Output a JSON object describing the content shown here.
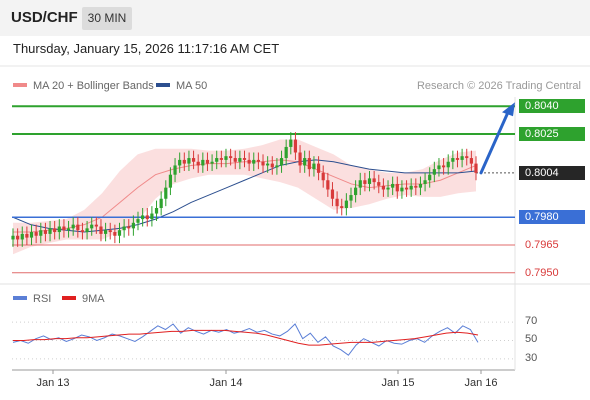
{
  "header": {
    "symbol": "USD/CHF",
    "timeframe": "30 MIN"
  },
  "datetime": "Thursday, January 15, 2026 11:17:16 AM CET",
  "legend": {
    "ma20_label": "MA 20 + Bollinger Bands",
    "ma20_color": "#f08a8a",
    "ma50_label": "MA 50",
    "ma50_color": "#2c4f8f",
    "copyright": "Research © 2026 Trading Central"
  },
  "levels": [
    {
      "value": 0.804,
      "label": "0.8040",
      "kind": "resistance"
    },
    {
      "value": 0.8025,
      "label": "0.8025",
      "kind": "resistance"
    },
    {
      "value": 0.8004,
      "label": "0.8004",
      "kind": "last"
    },
    {
      "value": 0.798,
      "label": "0.7980",
      "kind": "pivot"
    },
    {
      "value": 0.7965,
      "label": "0.7965",
      "kind": "support"
    },
    {
      "value": 0.795,
      "label": "0.7950",
      "kind": "support"
    }
  ],
  "colors": {
    "resistance": "#2ea22e",
    "pivot": "#3a6fd6",
    "support": "#e06b6b",
    "candle_up": "#2ea22e",
    "candle_down": "#d83a3a",
    "bollinger_fill": "#fbdcdc",
    "arrow": "#2a64c8",
    "rsi": "#5b7fd6",
    "rsi_ma": "#e02020"
  },
  "chart_data": {
    "type": "candlestick",
    "ylim": [
      0.7945,
      0.8045
    ],
    "x_ticks": [
      "Jan 13",
      "Jan 14",
      "Jan 15",
      "Jan 16"
    ],
    "closes": [
      0.797,
      0.7968,
      0.7971,
      0.7969,
      0.7972,
      0.797,
      0.7973,
      0.7971,
      0.7974,
      0.7972,
      0.7975,
      0.7973,
      0.7974,
      0.7976,
      0.7973,
      0.7972,
      0.7974,
      0.7976,
      0.7975,
      0.7971,
      0.7973,
      0.7972,
      0.797,
      0.7973,
      0.7975,
      0.7974,
      0.7977,
      0.7979,
      0.7981,
      0.7979,
      0.7982,
      0.7985,
      0.799,
      0.7996,
      0.8003,
      0.8008,
      0.8011,
      0.8009,
      0.8012,
      0.801,
      0.8008,
      0.8011,
      0.8009,
      0.801,
      0.8012,
      0.8011,
      0.8013,
      0.8012,
      0.801,
      0.8012,
      0.8011,
      0.8009,
      0.8011,
      0.801,
      0.8008,
      0.8009,
      0.8007,
      0.8008,
      0.8012,
      0.8018,
      0.8022,
      0.8015,
      0.8008,
      0.8012,
      0.8006,
      0.8009,
      0.8004,
      0.8,
      0.7995,
      0.799,
      0.7986,
      0.7985,
      0.7989,
      0.7992,
      0.7996,
      0.8,
      0.7998,
      0.8001,
      0.7999,
      0.7997,
      0.7995,
      0.7996,
      0.7998,
      0.7994,
      0.7996,
      0.7995,
      0.7997,
      0.7996,
      0.7998,
      0.8,
      0.8003,
      0.8006,
      0.8008,
      0.8007,
      0.801,
      0.8012,
      0.8011,
      0.8013,
      0.8012,
      0.8009,
      0.8004
    ],
    "ma20_band": {
      "mid": [
        0.7972,
        0.7972,
        0.7973,
        0.7974,
        0.7976,
        0.798,
        0.7988,
        0.7996,
        0.8003,
        0.8006,
        0.8008,
        0.8009,
        0.8009,
        0.801,
        0.801,
        0.8011,
        0.801,
        0.8006,
        0.8002,
        0.7998,
        0.7996,
        0.7997,
        0.7998,
        0.7998,
        0.8,
        0.8004,
        0.8008
      ],
      "upper": [
        0.7977,
        0.7977,
        0.7978,
        0.7979,
        0.7984,
        0.7993,
        0.8005,
        0.8014,
        0.8017,
        0.8017,
        0.8017,
        0.8016,
        0.8016,
        0.8017,
        0.8019,
        0.8022,
        0.8022,
        0.8018,
        0.8014,
        0.8008,
        0.8006,
        0.8004,
        0.8004,
        0.8006,
        0.8011,
        0.8015,
        0.8016
      ],
      "lower": [
        0.796,
        0.7964,
        0.7966,
        0.7968,
        0.7968,
        0.7968,
        0.7972,
        0.7978,
        0.799,
        0.7998,
        0.8001,
        0.8003,
        0.8003,
        0.8003,
        0.8001,
        0.7999,
        0.7996,
        0.799,
        0.7984,
        0.7985,
        0.7987,
        0.799,
        0.7992,
        0.7991,
        0.7991,
        0.7993,
        0.7994
      ]
    },
    "ma50": [
      0.798,
      0.7976,
      0.7974,
      0.7973,
      0.7972,
      0.7973,
      0.7974,
      0.7976,
      0.7979,
      0.7983,
      0.7988,
      0.7992,
      0.7996,
      0.8,
      0.8004,
      0.8008,
      0.801,
      0.8011,
      0.801,
      0.8008,
      0.8006,
      0.8005,
      0.8004,
      0.8004,
      0.8004,
      0.8004,
      0.8005
    ],
    "rsi": {
      "labels": [
        "RSI",
        "9MA"
      ],
      "ticks": [
        70,
        50,
        30
      ],
      "values": [
        48,
        50,
        47,
        52,
        55,
        51,
        53,
        49,
        52,
        56,
        54,
        50,
        53,
        57,
        55,
        52,
        49,
        54,
        60,
        66,
        62,
        68,
        58,
        64,
        60,
        57,
        61,
        59,
        62,
        58,
        60,
        63,
        59,
        61,
        57,
        55,
        60,
        68,
        52,
        58,
        48,
        54,
        44,
        40,
        34,
        45,
        52,
        48,
        44,
        50,
        47,
        46,
        50,
        52,
        48,
        55,
        60,
        64,
        58,
        66,
        62,
        48
      ],
      "ma": [
        50,
        50,
        51,
        51,
        52,
        52,
        53,
        53,
        54,
        55,
        56,
        57,
        57,
        58,
        59,
        60,
        60,
        61,
        61,
        61,
        61,
        60,
        59,
        58,
        56,
        53,
        50,
        47,
        45,
        45,
        46,
        47,
        48,
        48,
        48,
        49,
        50,
        51,
        52,
        54,
        56,
        58,
        59,
        58,
        56
      ]
    }
  }
}
